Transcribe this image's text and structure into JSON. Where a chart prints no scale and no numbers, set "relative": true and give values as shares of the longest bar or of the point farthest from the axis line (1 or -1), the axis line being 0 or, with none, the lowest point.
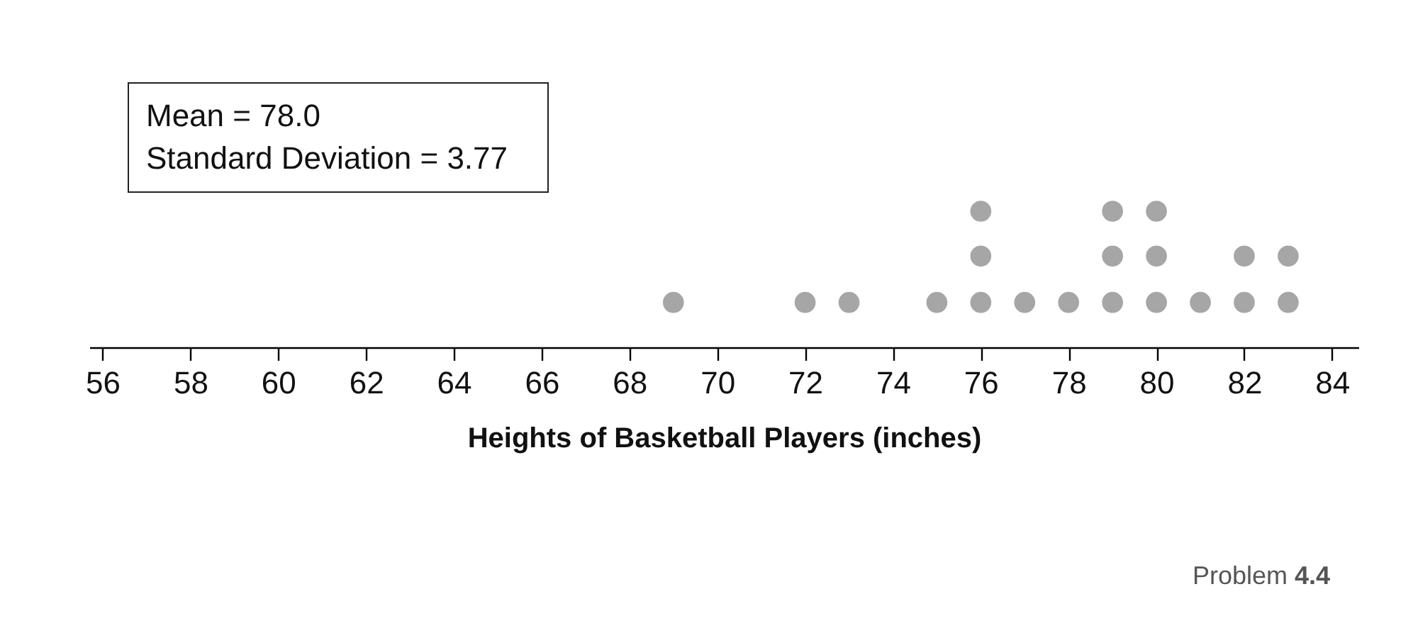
{
  "chart_data": {
    "type": "scatter",
    "xlabel": "Heights of Basketball Players (inches)",
    "series": [
      {
        "color": "#a6a6a6",
        "x": [
          69,
          72,
          73,
          75,
          76,
          76,
          76,
          77,
          78,
          79,
          79,
          79,
          80,
          80,
          80,
          81,
          82,
          82,
          83,
          83
        ],
        "values": [
          0.33,
          0.33,
          0.33,
          0.33,
          0.33,
          0.67,
          1,
          0.33,
          0.33,
          0.33,
          0.67,
          1,
          0.33,
          0.67,
          1,
          0.33,
          0.33,
          0.67,
          0.33,
          0.67
        ]
      }
    ],
    "xlim": [
      55.7,
      84.6
    ],
    "xticks": [
      56,
      58,
      60,
      62,
      64,
      66,
      68,
      70,
      72,
      74,
      76,
      78,
      80,
      82,
      84
    ],
    "relative": true,
    "tick_labels": "x",
    "grid": false,
    "legend": false,
    "marker": "circle",
    "annotations": [
      "Mean = 78.0\nStandard Deviation = 3.77",
      "Problem 4.4"
    ]
  }
}
